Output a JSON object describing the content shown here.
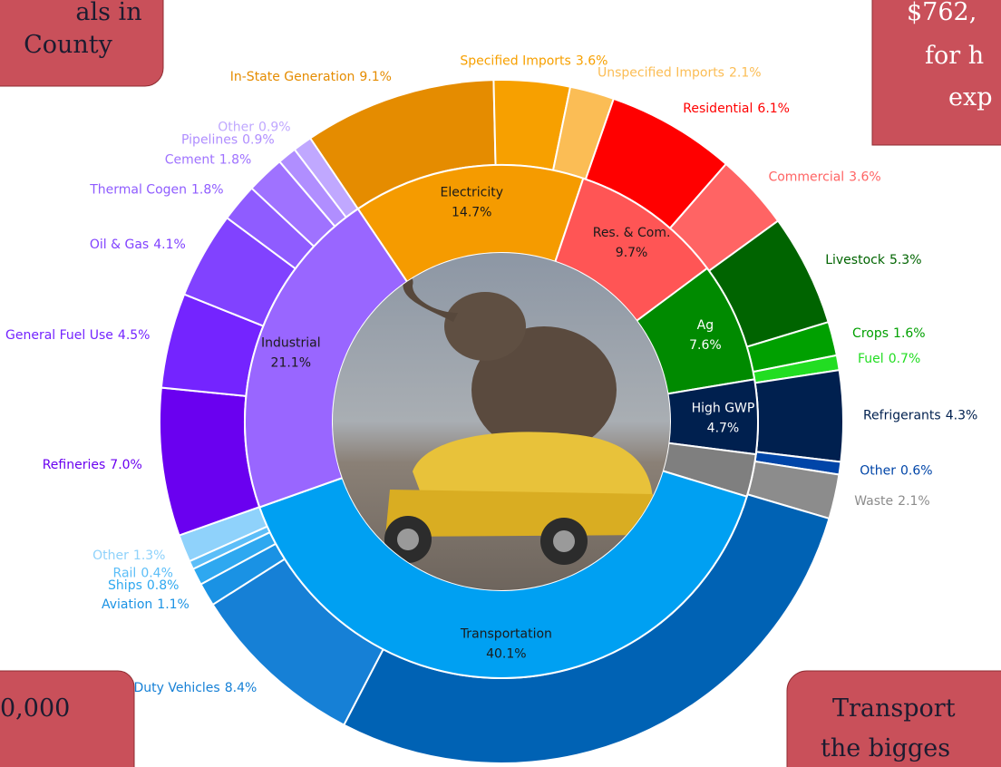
{
  "chart_data": {
    "type": "sunburst",
    "inner": {
      "categories": [
        "Electricity",
        "Res. & Com.",
        "Ag",
        "High GWP",
        null,
        "Transportation",
        "Industrial"
      ],
      "values": [
        14.7,
        9.7,
        7.6,
        4.7,
        2.7,
        40.1,
        21.1
      ],
      "value_labels": [
        "14.7%",
        "9.7%",
        "7.6%",
        "4.7%",
        null,
        "40.1%",
        "21.1%"
      ],
      "colors": [
        "#f59b00",
        "#ff5555",
        "#008a00",
        "#00204f",
        "#7f7f7f",
        "#00a0f2",
        "#9966ff"
      ]
    },
    "outer": {
      "categories": [
        "In-State Generation",
        "Specified Imports",
        "Unspecified Imports",
        "Residential",
        "Commercial",
        "Livestock",
        "Crops",
        "Fuel",
        "Refrigerants",
        "Other",
        "Waste",
        null,
        "Heavy-Duty Vehicles",
        "Aviation",
        "Ships",
        "Rail",
        "Other",
        "Refineries",
        "General Fuel Use",
        "Oil & Gas",
        "Thermal Cogen",
        "Cement",
        "Pipelines",
        "Other"
      ],
      "values": [
        9.1,
        3.6,
        2.1,
        6.1,
        3.6,
        5.3,
        1.6,
        0.7,
        4.3,
        0.6,
        2.1,
        28.1,
        8.4,
        1.1,
        0.8,
        0.4,
        1.3,
        7.0,
        4.5,
        4.1,
        1.8,
        1.8,
        0.9,
        0.9
      ],
      "value_labels": [
        "9.1%",
        "3.6%",
        "2.1%",
        "6.1%",
        "3.6%",
        "5.3%",
        "1.6%",
        "0.7%",
        "4.3%",
        "0.6%",
        "2.1%",
        null,
        "8.4%",
        "1.1%",
        "0.8%",
        "0.4%",
        "1.3%",
        "7.0%",
        "4.5%",
        "4.1%",
        "1.8%",
        "1.8%",
        "0.9%",
        "0.9%"
      ],
      "colors": [
        "#e58c00",
        "#f7a000",
        "#fbbd55",
        "#ff0000",
        "#ff6464",
        "#006400",
        "#00a000",
        "#22dd22",
        "#00204f",
        "#0045a8",
        "#8c8c8c",
        "#0062b4",
        "#1680d6",
        "#1a92e4",
        "#2ea8f0",
        "#5cbef8",
        "#8fd2fb",
        "#6a00f0",
        "#7424ff",
        "#8142ff",
        "#8f5cff",
        "#9f72ff",
        "#b08eff",
        "#c0a8ff"
      ]
    }
  },
  "overlays": [
    {
      "lines": [
        "als in",
        "County"
      ]
    },
    {
      "lines": [
        "$762,",
        "for h",
        "exp"
      ]
    },
    {
      "lines": [
        "0,000"
      ]
    },
    {
      "lines": [
        "Transport",
        "the bigges"
      ]
    }
  ]
}
